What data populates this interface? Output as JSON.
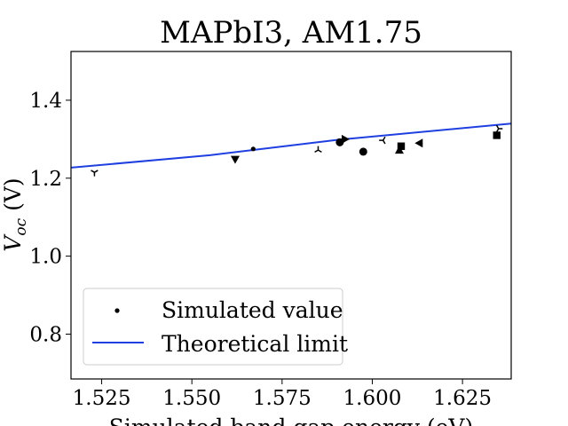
{
  "chart_data": {
    "type": "scatter",
    "title": "MAPbI3, AM1.75",
    "xlabel": "Simulated band gap energy (eV)",
    "ylabel_main": "V",
    "ylabel_sub": "oc",
    "ylabel_unit": " (V)",
    "xlim": [
      1.5165,
      1.6385
    ],
    "ylim": [
      0.685,
      1.525
    ],
    "x_ticks": [
      "1.525",
      "1.550",
      "1.575",
      "1.600",
      "1.625"
    ],
    "x_tick_values": [
      1.525,
      1.55,
      1.575,
      1.6,
      1.625
    ],
    "y_ticks": [
      "0.8",
      "1.0",
      "1.2",
      "1.4"
    ],
    "y_tick_values": [
      0.8,
      1.0,
      1.2,
      1.4
    ],
    "grid": false,
    "legend_position": "lower-left",
    "legend": [
      {
        "label": "Simulated value",
        "kind": "marker"
      },
      {
        "label": "Theoretical limit",
        "kind": "line",
        "color": "#1f3fe0"
      }
    ],
    "series": [
      {
        "name": "Theoretical limit",
        "kind": "line",
        "color": "#1f3fe0",
        "x": [
          1.5165,
          1.555,
          1.59,
          1.6385
        ],
        "y": [
          1.227,
          1.259,
          1.298,
          1.34
        ]
      },
      {
        "name": "Simulated value",
        "kind": "scatter",
        "color": "#000000",
        "points": [
          {
            "x": 1.523,
            "y": 1.215,
            "marker": "tri_down"
          },
          {
            "x": 1.562,
            "y": 1.248,
            "marker": "triangle_down"
          },
          {
            "x": 1.567,
            "y": 1.275,
            "marker": "dot"
          },
          {
            "x": 1.585,
            "y": 1.272,
            "marker": "tri_up"
          },
          {
            "x": 1.591,
            "y": 1.292,
            "marker": "circle"
          },
          {
            "x": 1.5925,
            "y": 1.3,
            "marker": "triangle_right"
          },
          {
            "x": 1.5975,
            "y": 1.268,
            "marker": "circle"
          },
          {
            "x": 1.603,
            "y": 1.297,
            "marker": "tri_left"
          },
          {
            "x": 1.6075,
            "y": 1.272,
            "marker": "triangle_up"
          },
          {
            "x": 1.608,
            "y": 1.282,
            "marker": "square"
          },
          {
            "x": 1.613,
            "y": 1.29,
            "marker": "triangle_left"
          },
          {
            "x": 1.6345,
            "y": 1.31,
            "marker": "square"
          },
          {
            "x": 1.635,
            "y": 1.327,
            "marker": "tri_right"
          }
        ]
      }
    ]
  }
}
